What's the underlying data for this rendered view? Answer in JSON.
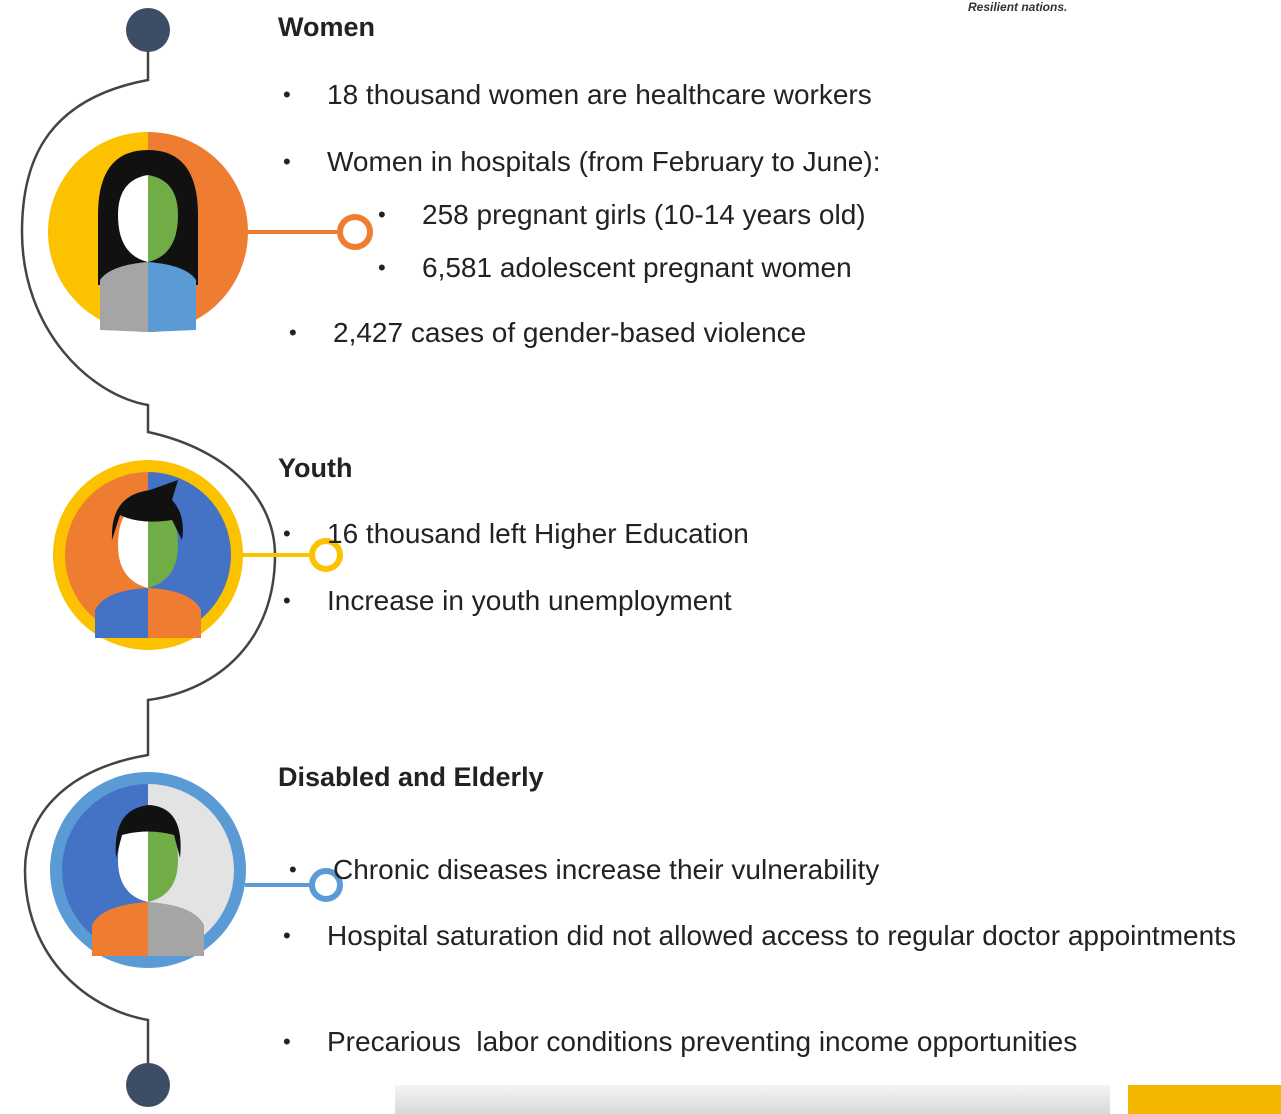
{
  "logo_text": "Resilient nations.",
  "sections": [
    {
      "title": "Women",
      "items": [
        {
          "text": "18 thousand women are healthcare workers"
        },
        {
          "text": "Women in hospitals (from February to June):",
          "subitems": [
            "258 pregnant girls (10-14 years old)",
            "6,581 adolescent pregnant women"
          ]
        },
        {
          "text": "2,427 cases of gender-based violence"
        }
      ]
    },
    {
      "title": "Youth",
      "items": [
        {
          "text": "16 thousand left Higher Education"
        },
        {
          "text": "Increase in youth unemployment"
        }
      ]
    },
    {
      "title": "Disabled and Elderly",
      "items": [
        {
          "text": "Chronic diseases increase their vulnerability"
        },
        {
          "text": "Hospital saturation did not allowed access to regular doctor appointments"
        },
        {
          "text": "Precarious  labor conditions preventing income opportunities"
        }
      ]
    }
  ]
}
